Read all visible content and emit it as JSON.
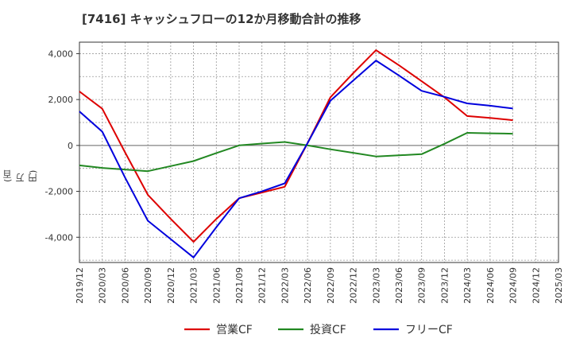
{
  "title": "[7416]  キャッシュフローの12か月移動合計の推移",
  "y_unit": "(百万円)",
  "chart_data": {
    "type": "line",
    "title": "[7416]  キャッシュフローの12か月移動合計の推移",
    "ylabel": "(百万円)",
    "xlabel": "",
    "x": [
      "2019/12",
      "2020/03",
      "2020/06",
      "2020/09",
      "2020/12",
      "2021/03",
      "2021/06",
      "2021/09",
      "2021/12",
      "2022/03",
      "2022/06",
      "2022/09",
      "2022/12",
      "2023/03",
      "2023/06",
      "2023/09",
      "2023/12",
      "2024/03",
      "2024/06",
      "2024/09",
      "2024/12",
      "2025/03"
    ],
    "ylim": [
      -5100,
      4500
    ],
    "yticks": [
      4000,
      2000,
      0,
      -2000,
      -4000
    ],
    "ytick_labels": [
      "4,000",
      "2,000",
      "0",
      "-2,000",
      "-4,000"
    ],
    "grid": true,
    "legend_position": "bottom",
    "series": [
      {
        "name": "営業CF",
        "color": "#dd0000",
        "values": [
          2350,
          1600,
          -300,
          -2150,
          -3200,
          -4200,
          -3200,
          -2300,
          -2050,
          -1800,
          100,
          2100,
          3150,
          4150,
          3500,
          2800,
          2100,
          1280,
          1200,
          1100,
          null,
          null
        ]
      },
      {
        "name": "投資CF",
        "color": "#228822",
        "values": [
          -870,
          -980,
          -1050,
          -1120,
          -900,
          -680,
          -330,
          0,
          80,
          150,
          0,
          -170,
          -320,
          -480,
          -430,
          -380,
          70,
          550,
          530,
          510,
          null,
          null
        ]
      },
      {
        "name": "フリーCF",
        "color": "#0000dd",
        "values": [
          1480,
          600,
          -1400,
          -3280,
          -4080,
          -4880,
          -3560,
          -2300,
          -2000,
          -1650,
          100,
          1950,
          2830,
          3700,
          3050,
          2380,
          2120,
          1830,
          1730,
          1610,
          null,
          null
        ]
      }
    ]
  }
}
